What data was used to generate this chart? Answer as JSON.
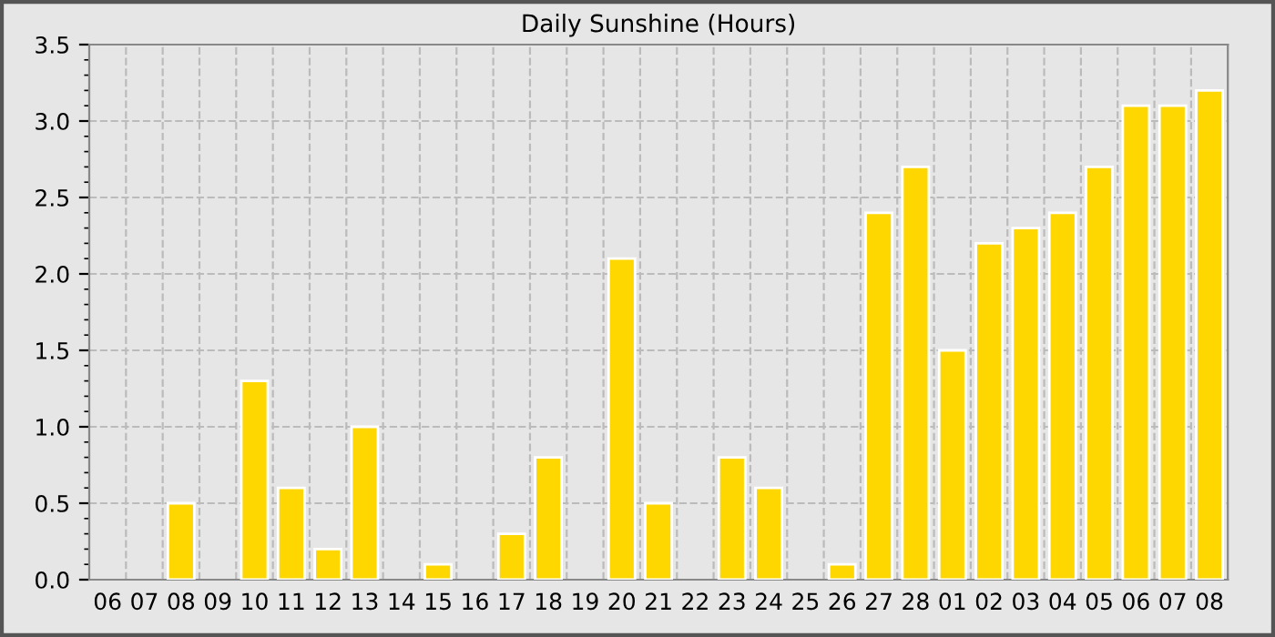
{
  "chart_data": {
    "type": "bar",
    "title": "Daily Sunshine (Hours)",
    "categories": [
      "06",
      "07",
      "08",
      "09",
      "10",
      "11",
      "12",
      "13",
      "14",
      "15",
      "16",
      "17",
      "18",
      "19",
      "20",
      "21",
      "22",
      "23",
      "24",
      "25",
      "26",
      "27",
      "28",
      "01",
      "02",
      "03",
      "04",
      "05",
      "06",
      "07",
      "08"
    ],
    "values": [
      0,
      0,
      0.5,
      0,
      1.3,
      0.6,
      0.2,
      1.0,
      0,
      0.1,
      0,
      0.3,
      0.8,
      0,
      2.1,
      0.5,
      0,
      0.8,
      0.6,
      0,
      0.1,
      2.4,
      2.7,
      1.5,
      2.2,
      2.3,
      2.4,
      2.7,
      3.1,
      3.1,
      3.2
    ],
    "color": "#ffd700",
    "ylim": [
      0,
      3.5
    ],
    "yticks": [
      {
        "value": 0,
        "label": "0.0"
      },
      0.5,
      {
        "value": 1,
        "label": "1.0"
      },
      1.5,
      {
        "value": 2,
        "label": "2.0"
      },
      2.5,
      {
        "value": 3,
        "label": "3.0"
      },
      3.5
    ],
    "grid": true
  }
}
